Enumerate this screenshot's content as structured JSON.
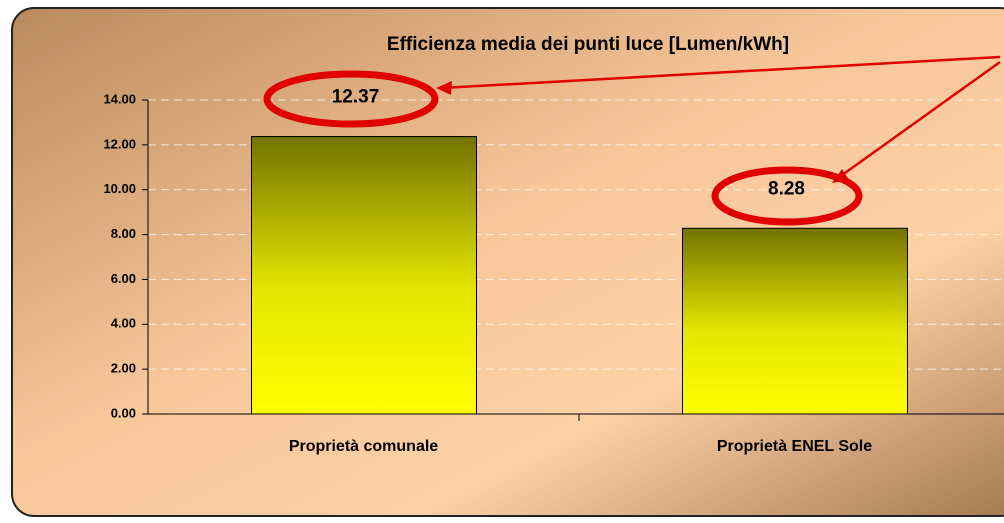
{
  "chart_data": {
    "type": "bar",
    "title": "Efficienza media dei punti luce [Lumen/kWh]",
    "categories": [
      "Proprietà comunale",
      "Proprietà ENEL Sole"
    ],
    "values": [
      12.37,
      8.28
    ],
    "ylim": [
      0,
      14
    ],
    "yticks": [
      {
        "value": 0,
        "label": "0.00"
      },
      {
        "value": 2,
        "label": "2.00"
      },
      {
        "value": 4,
        "label": "4.00"
      },
      {
        "value": 6,
        "label": "6.00"
      },
      {
        "value": 8,
        "label": "8.00"
      },
      {
        "value": 10,
        "label": "10.00"
      },
      {
        "value": 12,
        "label": "12.00"
      },
      {
        "value": 14,
        "label": "14.00"
      }
    ],
    "grid": true
  }
}
